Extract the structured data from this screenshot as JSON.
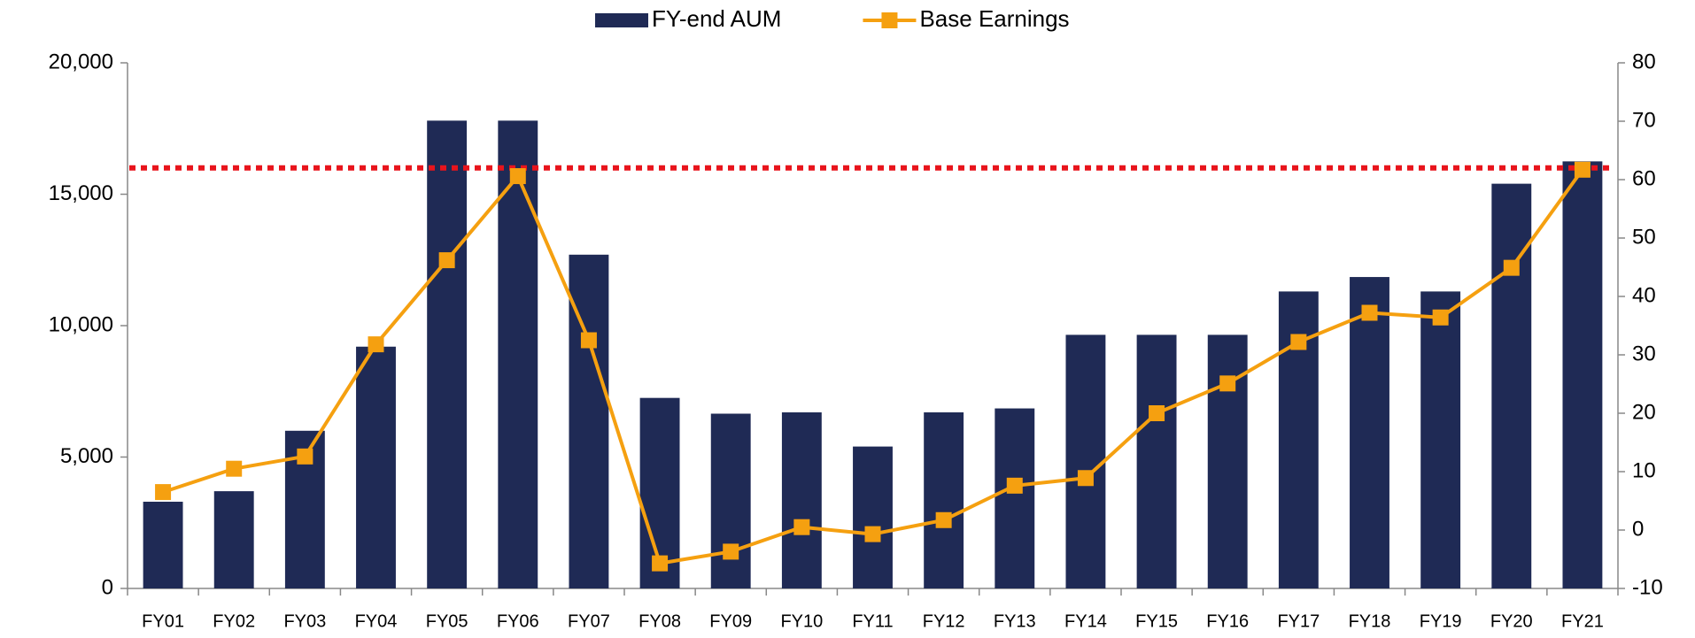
{
  "chart_data": {
    "type": "bar_line",
    "categories": [
      "FY01",
      "FY02",
      "FY03",
      "FY04",
      "FY05",
      "FY06",
      "FY07",
      "FY08",
      "FY09",
      "FY10",
      "FY11",
      "FY12",
      "FY13",
      "FY14",
      "FY15",
      "FY16",
      "FY17",
      "FY18",
      "FY19",
      "FY20",
      "FY21"
    ],
    "series": [
      {
        "name": "FY-end AUM",
        "type": "bar",
        "axis": "y",
        "color": "#1f2a55",
        "values": [
          3300,
          3700,
          6000,
          9200,
          17800,
          17800,
          12700,
          7250,
          6650,
          6700,
          5400,
          6700,
          6850,
          9650,
          9650,
          9650,
          11300,
          11850,
          11300,
          15400,
          16250
        ]
      },
      {
        "name": "Base Earnings",
        "type": "line",
        "axis": "y2",
        "color": "#f5a010",
        "values": [
          6.5,
          10.5,
          12.6,
          31.8,
          46.2,
          60.6,
          32.5,
          -5.7,
          -3.7,
          0.5,
          -0.7,
          1.7,
          7.6,
          8.9,
          20,
          25.1,
          32.2,
          37.2,
          36.4,
          44.9,
          61.7
        ]
      }
    ],
    "ylim": [
      0,
      20000
    ],
    "yticks": [
      {
        "value": 0,
        "label": "0"
      },
      {
        "value": 5000,
        "label": "5,000"
      },
      {
        "value": 10000,
        "label": "10,000"
      },
      {
        "value": 15000,
        "label": "15,000"
      },
      {
        "value": 20000,
        "label": "20,000"
      }
    ],
    "y2lim": [
      -10,
      80
    ],
    "y2ticks": [
      -10,
      0,
      10,
      20,
      30,
      40,
      50,
      60,
      70,
      80
    ],
    "negative_tick_color": "#ff0000",
    "reference_line": {
      "value": 16000,
      "axis": "y",
      "color": "#e8141c"
    },
    "grid": false,
    "legend": "top"
  }
}
